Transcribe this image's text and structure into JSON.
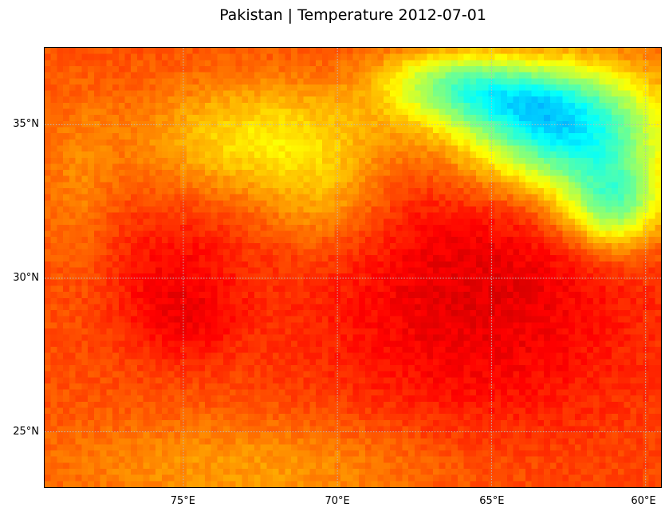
{
  "title": "Pakistan | Temperature 2012-07-01",
  "map": {
    "lat_ticks": [
      {
        "value": 35,
        "label": "35°N"
      },
      {
        "value": 30,
        "label": "30°N"
      },
      {
        "value": 25,
        "label": "25°N"
      }
    ],
    "lon_ticks": [
      {
        "value": 75,
        "label": "75°E"
      },
      {
        "value": 70,
        "label": "70°E"
      },
      {
        "value": 65,
        "label": "65°E"
      },
      {
        "value": 60,
        "label": "60°E"
      }
    ],
    "lon_range": [
      79.5,
      59.5
    ],
    "lat_range": [
      23.2,
      37.5
    ],
    "gridlines": "dotted",
    "colormap": "jet",
    "colors": {
      "hot": "#ff2a00",
      "warm": "#ff5a00",
      "mild": "#ffa500",
      "cool": "#ffff00",
      "cold": "#00ffff",
      "coldest": "#3a2aff"
    }
  },
  "chart_data": {
    "type": "heatmap",
    "title": "Pakistan | Temperature 2012-07-01",
    "xlabel": "",
    "ylabel": "",
    "xlim": [
      79.5,
      59.5
    ],
    "ylim": [
      23.2,
      37.5
    ],
    "x_ticks": [
      "75°E",
      "70°E",
      "65°E",
      "60°E"
    ],
    "y_ticks": [
      "35°N",
      "30°N",
      "25°N"
    ],
    "colormap": "jet",
    "grid": true
  }
}
